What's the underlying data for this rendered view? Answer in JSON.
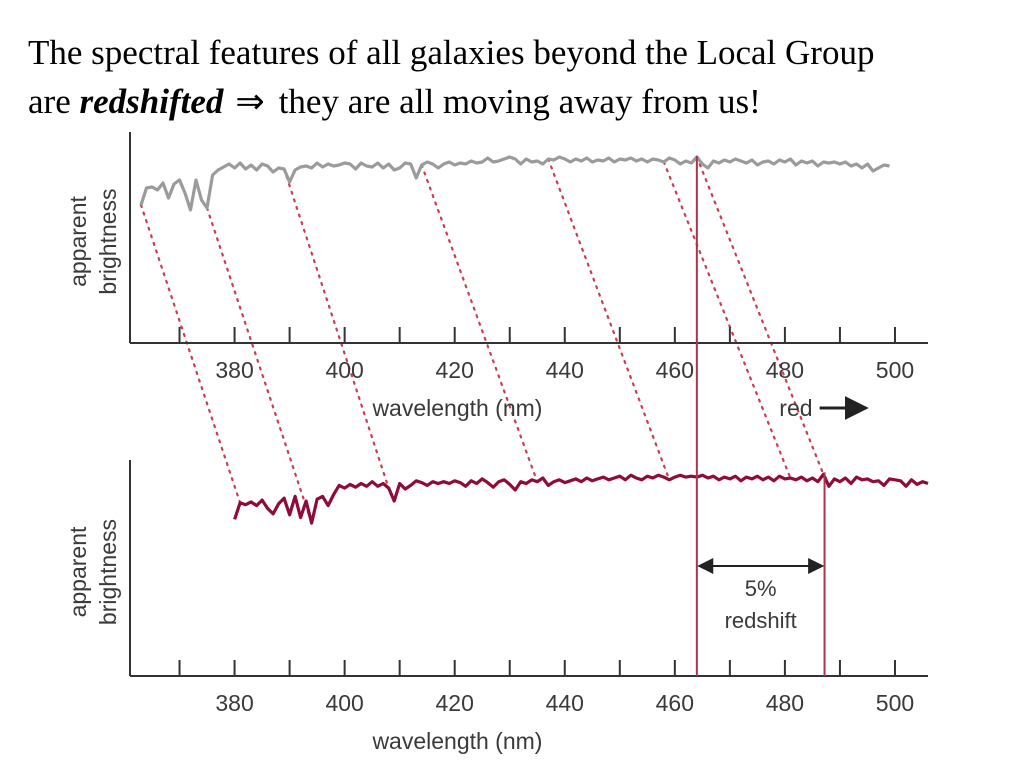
{
  "heading": {
    "line1": "The spectral features of all galaxies beyond the Local Group",
    "line2_prefix": "are",
    "line2_keyword": "redshifted",
    "line2_symbol": "⇒",
    "line2_suffix": "they are all moving away from us!"
  },
  "colors": {
    "top_spectrum": "#9b9b9b",
    "bottom_spectrum": "#8e0b3a",
    "guide_lines": "#cc3d4e",
    "marker_lines": "#b0324a",
    "axis": "#333333"
  },
  "chart_data": [
    {
      "type": "line",
      "title": "",
      "xlabel": "wavelength (nm)",
      "ylabel": "apparent brightness",
      "xlim": [
        361,
        506
      ],
      "ylim": [
        0,
        100
      ],
      "xticks": [
        380,
        400,
        420,
        440,
        460,
        480,
        500
      ],
      "grid": false,
      "direction_label": "red",
      "series": [
        {
          "x": [
            363,
            364,
            365,
            366,
            367,
            368,
            369,
            370,
            371,
            372,
            373,
            374,
            375,
            376,
            377,
            378,
            379,
            380,
            381,
            382,
            383,
            384,
            385,
            386,
            387,
            388,
            389,
            390,
            391,
            392,
            393,
            394,
            395,
            396,
            397,
            398,
            399,
            400,
            401,
            402,
            403,
            404,
            405,
            406,
            407,
            408,
            409,
            410,
            411,
            412,
            413,
            414,
            415,
            416,
            417,
            418,
            419,
            420,
            421,
            422,
            423,
            424,
            425,
            426,
            427,
            428,
            429,
            430,
            431,
            432,
            433,
            434,
            435,
            436,
            437,
            438,
            439,
            440,
            441,
            442,
            443,
            444,
            445,
            446,
            447,
            448,
            449,
            450,
            451,
            452,
            453,
            454,
            455,
            456,
            457,
            458,
            459,
            460,
            461,
            462,
            463,
            464,
            465,
            466,
            467,
            468,
            469,
            470,
            471,
            472,
            473,
            474,
            475,
            476,
            477,
            478,
            479,
            480,
            481,
            482,
            483,
            484,
            485,
            486,
            487,
            488,
            489,
            490,
            491,
            492,
            493,
            494,
            495,
            496,
            497,
            498,
            499
          ],
          "values": [
            55,
            72,
            73,
            70,
            77,
            62,
            76,
            80,
            67,
            50,
            80,
            60,
            52,
            85,
            90,
            93,
            96,
            92,
            97,
            91,
            95,
            90,
            96,
            94,
            88,
            92,
            91,
            78,
            90,
            93,
            94,
            92,
            97,
            93,
            96,
            94,
            95,
            97,
            96,
            91,
            97,
            94,
            93,
            97,
            92,
            96,
            90,
            92,
            97,
            96,
            82,
            95,
            98,
            96,
            92,
            96,
            98,
            95,
            97,
            96,
            99,
            97,
            98,
            102,
            98,
            99,
            101,
            103,
            101,
            96,
            101,
            98,
            99,
            96,
            101,
            100,
            103,
            101,
            98,
            101,
            99,
            102,
            98,
            100,
            99,
            102,
            98,
            101,
            100,
            102,
            99,
            101,
            98,
            101,
            100,
            98,
            102,
            100,
            96,
            99,
            97,
            103,
            96,
            92,
            99,
            97,
            100,
            98,
            101,
            99,
            97,
            100,
            95,
            98,
            99,
            96,
            100,
            98,
            101,
            95,
            99,
            97,
            99,
            94,
            98,
            97,
            98,
            96,
            98,
            94,
            96,
            92,
            96,
            89,
            92,
            95,
            94
          ]
        }
      ]
    },
    {
      "type": "line",
      "title": "",
      "xlabel": "wavelength (nm)",
      "ylabel": "apparent brightness",
      "xlim": [
        361,
        506
      ],
      "ylim": [
        0,
        100
      ],
      "xticks": [
        380,
        400,
        420,
        440,
        460,
        480,
        500
      ],
      "grid": false,
      "annotation": {
        "text_line1": "5%",
        "text_line2": "redshift",
        "from_x": 464,
        "to_x": 487.2
      },
      "series": [
        {
          "x": [
            380,
            381,
            382,
            383,
            384,
            385,
            386,
            387,
            388,
            389,
            390,
            391,
            392,
            393,
            394,
            395,
            396,
            397,
            398,
            399,
            400,
            401,
            402,
            403,
            404,
            405,
            406,
            407,
            408,
            409,
            410,
            411,
            412,
            413,
            414,
            415,
            416,
            417,
            418,
            419,
            420,
            421,
            422,
            423,
            424,
            425,
            426,
            427,
            428,
            429,
            430,
            431,
            432,
            433,
            434,
            435,
            436,
            437,
            438,
            439,
            440,
            441,
            442,
            443,
            444,
            445,
            446,
            447,
            448,
            449,
            450,
            451,
            452,
            453,
            454,
            455,
            456,
            457,
            458,
            459,
            460,
            461,
            462,
            463,
            464,
            465,
            466,
            467,
            468,
            469,
            470,
            471,
            472,
            473,
            474,
            475,
            476,
            477,
            478,
            479,
            480,
            481,
            482,
            483,
            484,
            485,
            486,
            487,
            488,
            489,
            490,
            491,
            492,
            493,
            494,
            495,
            496,
            497,
            498,
            499,
            500,
            501,
            502,
            503,
            504,
            505,
            506
          ],
          "values": [
            55,
            73,
            71,
            74,
            70,
            76,
            67,
            61,
            72,
            78,
            60,
            80,
            57,
            75,
            51,
            77,
            80,
            70,
            82,
            92,
            89,
            93,
            90,
            94,
            91,
            96,
            91,
            94,
            89,
            75,
            94,
            88,
            92,
            97,
            95,
            92,
            96,
            94,
            96,
            94,
            97,
            95,
            91,
            97,
            94,
            99,
            95,
            90,
            96,
            98,
            93,
            87,
            96,
            94,
            98,
            96,
            100,
            92,
            96,
            98,
            95,
            97,
            99,
            96,
            100,
            97,
            99,
            101,
            98,
            100,
            102,
            98,
            103,
            100,
            98,
            102,
            100,
            103,
            101,
            98,
            101,
            103,
            101,
            102,
            101,
            103,
            100,
            102,
            98,
            101,
            99,
            102,
            97,
            101,
            99,
            102,
            98,
            101,
            97,
            102,
            99,
            100,
            98,
            101,
            97,
            100,
            96,
            104,
            91,
            99,
            96,
            100,
            94,
            101,
            98,
            99,
            96,
            97,
            92,
            99,
            98,
            97,
            91,
            98,
            93,
            96,
            94
          ]
        }
      ]
    }
  ]
}
